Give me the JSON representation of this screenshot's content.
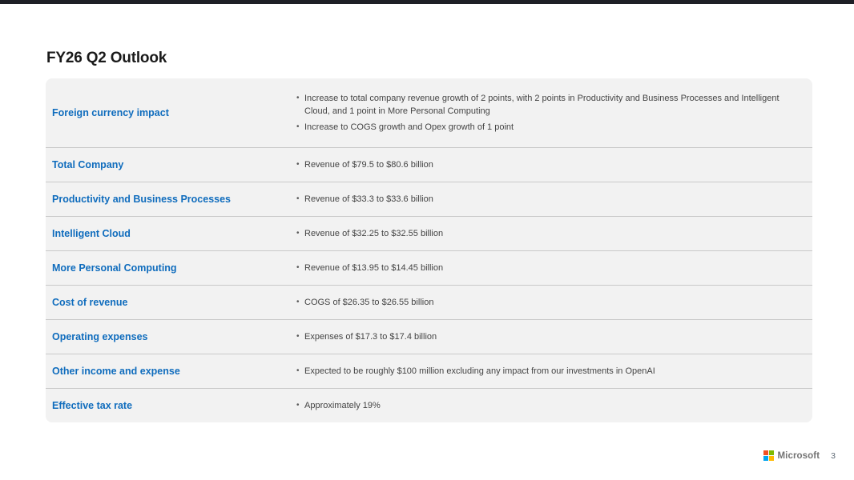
{
  "slide": {
    "title": "FY26 Q2 Outlook",
    "page_number": "3",
    "footer_brand": "Microsoft"
  },
  "table": {
    "rows": [
      {
        "label": "Foreign currency impact",
        "bullets": [
          "Increase to total company revenue growth of 2 points, with 2 points in Productivity and Business Processes and Intelligent Cloud, and 1 point in More Personal Computing",
          "Increase to COGS growth and Opex growth of 1 point"
        ]
      },
      {
        "label": "Total Company",
        "bullets": [
          "Revenue of $79.5 to $80.6 billion"
        ]
      },
      {
        "label": "Productivity and Business Processes",
        "bullets": [
          "Revenue of $33.3 to $33.6 billion"
        ]
      },
      {
        "label": "Intelligent Cloud",
        "bullets": [
          "Revenue of $32.25 to $32.55 billion"
        ]
      },
      {
        "label": "More Personal Computing",
        "bullets": [
          "Revenue of $13.95 to $14.45 billion"
        ]
      },
      {
        "label": "Cost of revenue",
        "bullets": [
          "COGS of $26.35 to $26.55 billion"
        ]
      },
      {
        "label": "Operating expenses",
        "bullets": [
          "Expenses of $17.3 to $17.4 billion"
        ]
      },
      {
        "label": "Other income and expense",
        "bullets": [
          "Expected to be roughly $100 million excluding any impact from our investments in OpenAI"
        ]
      },
      {
        "label": "Effective tax rate",
        "bullets": [
          "Approximately 19%"
        ]
      }
    ]
  },
  "colors": {
    "accent_blue": "#0f6cbd",
    "row_background": "#f2f2f2",
    "divider": "#c9c9c9",
    "top_bar": "#1e1f26",
    "ms_red": "#f25022",
    "ms_green": "#7fba00",
    "ms_blue": "#00a4ef",
    "ms_yellow": "#ffb900"
  }
}
